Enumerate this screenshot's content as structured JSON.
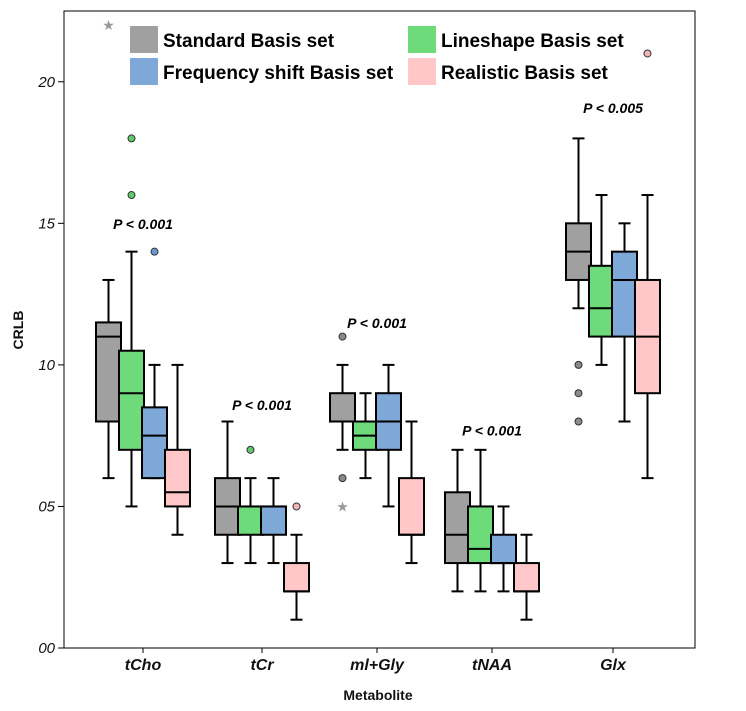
{
  "chart_data": {
    "type": "boxplot",
    "xlabel": "Metabolite",
    "ylabel": "CRLB",
    "ylim": [
      0,
      22.5
    ],
    "yticks": [
      {
        "value": 0,
        "label": "00"
      },
      {
        "value": 5,
        "label": "05"
      },
      {
        "value": 10,
        "label": "10"
      },
      {
        "value": 15,
        "label": "15"
      },
      {
        "value": 20,
        "label": "20"
      }
    ],
    "categories": [
      "tCho",
      "tCr",
      "ml+Gly",
      "tNAA",
      "Glx"
    ],
    "legend_position": "top",
    "series": [
      {
        "name": "Standard Basis set",
        "color": "#a0a0a0",
        "outlier_color": "#8a8a8a",
        "boxes": [
          {
            "min": 6,
            "q1": 8,
            "median": 11,
            "q3": 11.5,
            "max": 13,
            "outliers": [],
            "extremes": [
              22
            ]
          },
          {
            "min": 3,
            "q1": 4,
            "median": 5,
            "q3": 6,
            "max": 8,
            "outliers": [],
            "extremes": []
          },
          {
            "min": 7,
            "q1": 8,
            "median": 8,
            "q3": 9,
            "max": 10,
            "outliers": [
              11,
              6
            ],
            "extremes": [
              5
            ]
          },
          {
            "min": 2,
            "q1": 3,
            "median": 4,
            "q3": 5.5,
            "max": 7,
            "outliers": [],
            "extremes": []
          },
          {
            "min": 12,
            "q1": 13,
            "median": 14,
            "q3": 15,
            "max": 18,
            "outliers": [
              10,
              9,
              8
            ],
            "extremes": []
          }
        ]
      },
      {
        "name": "Lineshape Basis set",
        "color": "#6ddb7a",
        "outlier_color": "#5fc96d",
        "boxes": [
          {
            "min": 5,
            "q1": 7,
            "median": 9,
            "q3": 10.5,
            "max": 14,
            "outliers": [
              18,
              16
            ],
            "extremes": []
          },
          {
            "min": 3,
            "q1": 4,
            "median": 5,
            "q3": 5,
            "max": 6,
            "outliers": [
              7
            ],
            "extremes": []
          },
          {
            "min": 6,
            "q1": 7,
            "median": 7.5,
            "q3": 8,
            "max": 9,
            "outliers": [],
            "extremes": []
          },
          {
            "min": 2,
            "q1": 3,
            "median": 3.5,
            "q3": 5,
            "max": 7,
            "outliers": [],
            "extremes": []
          },
          {
            "min": 10,
            "q1": 11,
            "median": 12,
            "q3": 13.5,
            "max": 16,
            "outliers": [],
            "extremes": []
          }
        ]
      },
      {
        "name": "Frequency shift Basis set",
        "color": "#7ea8d8",
        "outlier_color": "#6a98d0",
        "boxes": [
          {
            "min": 6,
            "q1": 6,
            "median": 7.5,
            "q3": 8.5,
            "max": 10,
            "outliers": [
              14
            ],
            "extremes": []
          },
          {
            "min": 3,
            "q1": 4,
            "median": 5,
            "q3": 5,
            "max": 6,
            "outliers": [],
            "extremes": []
          },
          {
            "min": 5,
            "q1": 7,
            "median": 8,
            "q3": 9,
            "max": 10,
            "outliers": [],
            "extremes": []
          },
          {
            "min": 2,
            "q1": 3,
            "median": 3,
            "q3": 4,
            "max": 5,
            "outliers": [],
            "extremes": []
          },
          {
            "min": 8,
            "q1": 11,
            "median": 13,
            "q3": 14,
            "max": 15,
            "outliers": [],
            "extremes": []
          }
        ]
      },
      {
        "name": "Realistic Basis set",
        "color": "#ffc7c7",
        "outlier_color": "#f5b5b5",
        "boxes": [
          {
            "min": 4,
            "q1": 5,
            "median": 5.5,
            "q3": 7,
            "max": 10,
            "outliers": [],
            "extremes": []
          },
          {
            "min": 1,
            "q1": 2,
            "median": 2,
            "q3": 3,
            "max": 4,
            "outliers": [
              5
            ],
            "extremes": []
          },
          {
            "min": 3,
            "q1": 4,
            "median": 4,
            "q3": 6,
            "max": 8,
            "outliers": [],
            "extremes": []
          },
          {
            "min": 1,
            "q1": 2,
            "median": 2,
            "q3": 3,
            "max": 4,
            "outliers": [],
            "extremes": []
          },
          {
            "min": 6,
            "q1": 9,
            "median": 11,
            "q3": 13,
            "max": 16,
            "outliers": [
              21
            ],
            "extremes": []
          }
        ]
      }
    ],
    "annotations": [
      {
        "category": "tCho",
        "text": "P < 0.001",
        "y": 14.8
      },
      {
        "category": "tCr",
        "text": "P < 0.001",
        "y": 8.4
      },
      {
        "category": "ml+Gly",
        "text": "P < 0.001",
        "y": 11.3
      },
      {
        "category": "tNAA",
        "text": "P < 0.001",
        "y": 7.5
      },
      {
        "category": "Glx",
        "text": "P < 0.005",
        "y": 18.9
      }
    ]
  }
}
